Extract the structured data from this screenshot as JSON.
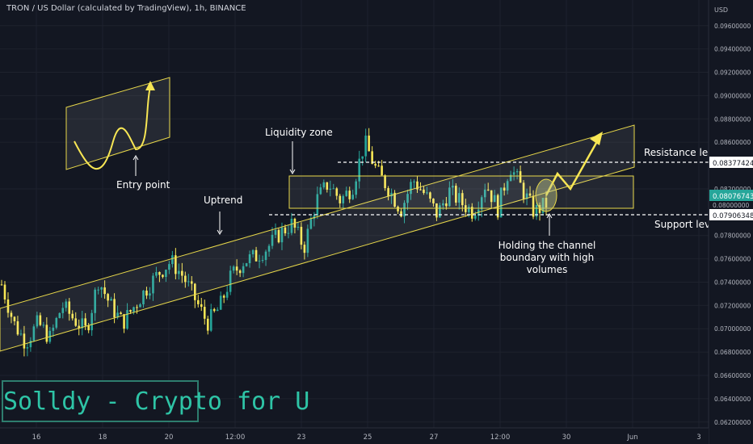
{
  "header": {
    "title": "TRON / US Dollar (calculated by TradingView), 1h, BINANCE"
  },
  "watermark": {
    "text": "Solldy - Crypto for U"
  },
  "colors": {
    "background": "#131722",
    "bull": "#26a69a",
    "bear": "#f7e654",
    "annotation": "#f0e68c",
    "text": "#d1d4dc"
  },
  "price_axis": {
    "unit_label": "USD",
    "ticks": [
      "0.09600000",
      "0.09400000",
      "0.09200000",
      "0.09000000",
      "0.08800000",
      "0.08600000",
      "0.08200000",
      "0.07800000",
      "0.07600000",
      "0.07400000",
      "0.07200000",
      "0.07000000",
      "0.06800000",
      "0.06600000",
      "0.06400000",
      "0.06200000"
    ],
    "tags": {
      "resistance": "0.08377424",
      "current": "0.08076743",
      "tick_080": "0.08000000",
      "support": "0.07906348"
    }
  },
  "time_axis": {
    "ticks": [
      "16",
      "18",
      "20",
      "12:00",
      "23",
      "25",
      "27",
      "12:00",
      "30",
      "Jun",
      "3",
      "12:00"
    ]
  },
  "annotations": {
    "entry_point": "Entry point",
    "uptrend": "Uptrend",
    "liquidity_zone": "Liquidity zone",
    "resistance_level": "Resistance level",
    "support_level": "Support level",
    "holding_line1": "Holding the channel",
    "holding_line2": "boundary with high",
    "holding_line3": "volumes"
  },
  "chart_data": {
    "type": "candlestick",
    "title": "TRON / US Dollar (calculated by TradingView), 1h, BINANCE",
    "y_unit": "USD",
    "ylim": [
      0.0615,
      0.0982
    ],
    "x_ticks": [
      "16",
      "18",
      "20",
      "12:00",
      "23",
      "25",
      "27",
      "12:00",
      "30",
      "Jun",
      "3",
      "12:00"
    ],
    "grid": true,
    "levels": {
      "resistance": 0.08377424,
      "support": 0.07906348,
      "current": 0.08076743
    },
    "price_path_approx": [
      0.0738,
      0.0705,
      0.0688,
      0.0705,
      0.0692,
      0.072,
      0.0708,
      0.0698,
      0.0742,
      0.072,
      0.0705,
      0.072,
      0.0735,
      0.0748,
      0.0758,
      0.0745,
      0.0725,
      0.0705,
      0.0718,
      0.0746,
      0.0758,
      0.0762,
      0.077,
      0.0782,
      0.079,
      0.077,
      0.081,
      0.0825,
      0.081,
      0.0822,
      0.086,
      0.0835,
      0.082,
      0.0802,
      0.0828,
      0.0815,
      0.0798,
      0.0818,
      0.0808,
      0.08,
      0.0825,
      0.0803,
      0.084,
      0.082,
      0.08,
      0.0807
    ]
  }
}
